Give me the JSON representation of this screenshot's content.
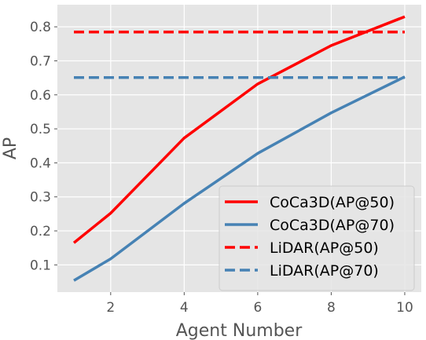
{
  "chart_data": {
    "type": "line",
    "xlabel": "Agent Number",
    "ylabel": "AP",
    "xlim": [
      0.55,
      10.45
    ],
    "ylim": [
      0.02,
      0.865
    ],
    "xticks": [
      2,
      4,
      6,
      8,
      10
    ],
    "yticks": [
      0.1,
      0.2,
      0.3,
      0.4,
      0.5,
      0.6,
      0.7,
      0.8
    ],
    "grid": true,
    "legend_position": "lower-right",
    "series": [
      {
        "name": "CoCa3D(AP@50)",
        "style": "solid",
        "color": "#ff0000",
        "x": [
          1,
          2,
          4,
          6,
          8,
          10
        ],
        "y": [
          0.165,
          0.252,
          0.473,
          0.632,
          0.745,
          0.83
        ]
      },
      {
        "name": "CoCa3D(AP@70)",
        "style": "solid",
        "color": "#4682b4",
        "x": [
          1,
          2,
          4,
          6,
          8,
          10
        ],
        "y": [
          0.054,
          0.118,
          0.281,
          0.428,
          0.547,
          0.653
        ]
      },
      {
        "name": "LiDAR(AP@50)",
        "style": "dashed",
        "color": "#ff0000",
        "x": [
          1,
          10
        ],
        "y": [
          0.785,
          0.785
        ]
      },
      {
        "name": "LiDAR(AP@70)",
        "style": "dashed",
        "color": "#4682b4",
        "x": [
          1,
          10
        ],
        "y": [
          0.651,
          0.651
        ]
      }
    ]
  }
}
